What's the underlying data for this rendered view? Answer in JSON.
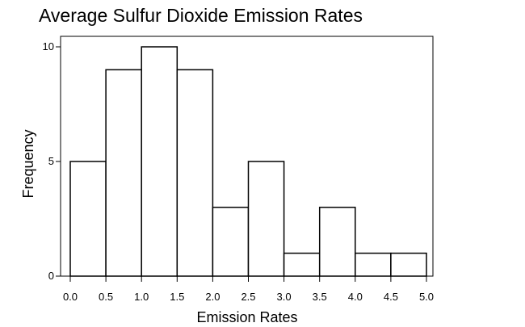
{
  "chart_data": {
    "type": "bar",
    "title": "Average Sulfur Dioxide Emission Rates",
    "xlabel": "Emission Rates",
    "ylabel": "Frequency",
    "bin_edges": [
      0.0,
      0.5,
      1.0,
      1.5,
      2.0,
      2.5,
      3.0,
      3.5,
      4.0,
      4.5,
      5.0
    ],
    "values": [
      5,
      9,
      10,
      9,
      3,
      5,
      1,
      3,
      1,
      1
    ],
    "x_ticks": [
      "0.0",
      "0.5",
      "1.0",
      "1.5",
      "2.0",
      "2.5",
      "3.0",
      "3.5",
      "4.0",
      "4.5",
      "5.0"
    ],
    "y_ticks": [
      "0",
      "5",
      "10"
    ],
    "xlim": [
      0.0,
      5.0
    ],
    "ylim": [
      0,
      10
    ],
    "grid": false,
    "legend": "none",
    "colors": {
      "bar_fill": "#ffffff",
      "bar_stroke": "#000000"
    }
  }
}
